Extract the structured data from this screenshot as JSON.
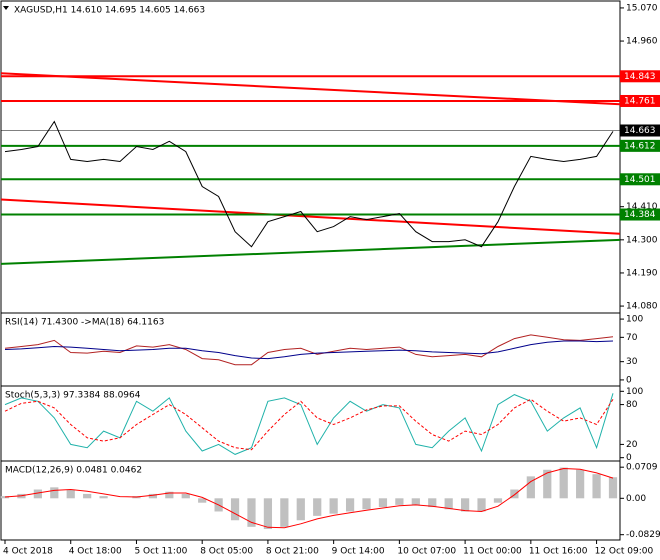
{
  "chart_data": [
    {
      "type": "line",
      "title": "XAGUSD,H1  14.610 14.695 14.605 14.663",
      "categories": [
        "4 Oct 2018",
        null,
        null,
        null,
        "4 Oct 18:00",
        null,
        null,
        null,
        "5 Oct 11:00",
        null,
        null,
        null,
        "8 Oct 05:00",
        null,
        null,
        null,
        "8 Oct 21:00",
        null,
        null,
        null,
        "9 Oct 14:00",
        null,
        null,
        null,
        "10 Oct 07:00",
        null,
        null,
        null,
        "11 Oct 00:00",
        null,
        null,
        null,
        "11 Oct 16:00",
        null,
        null,
        null,
        "12 Oct 09:00",
        null
      ],
      "series": [
        {
          "color": "#000000",
          "values": [
            14.593,
            14.6,
            14.61,
            14.693,
            14.567,
            14.56,
            14.567,
            14.56,
            14.61,
            14.6,
            14.627,
            14.593,
            14.477,
            14.444,
            14.327,
            14.277,
            14.36,
            14.377,
            14.394,
            14.327,
            14.344,
            14.377,
            14.367,
            14.377,
            14.387,
            14.327,
            14.294,
            14.294,
            14.3,
            14.277,
            14.36,
            14.477,
            14.577,
            14.567,
            14.56,
            14.567,
            14.577,
            14.66
          ]
        }
      ],
      "levels": [
        {
          "value": 14.843,
          "color": "#ff0000"
        },
        {
          "value": 14.761,
          "color": "#ff0000"
        },
        {
          "value": 14.663,
          "color": "#000000"
        },
        {
          "value": 14.612,
          "color": "#008000"
        },
        {
          "value": 14.501,
          "color": "#008000"
        },
        {
          "value": 14.384,
          "color": "#008000"
        }
      ],
      "trendlines": [
        {
          "color": "#ff0000",
          "values": [
            14.853,
            14.75
          ]
        },
        {
          "color": "#ff0000",
          "values": [
            14.434,
            14.32
          ]
        },
        {
          "color": "#008000",
          "values": [
            14.22,
            14.3
          ]
        }
      ],
      "ylim": [
        14.057,
        15.093
      ],
      "yticks": [
        {
          "value": 15.07,
          "label": "15.070"
        },
        {
          "value": 14.96,
          "label": "14.960"
        },
        {
          "value": 14.41,
          "label": "14.410"
        },
        {
          "value": 14.3,
          "label": "14.300"
        },
        {
          "value": 14.19,
          "label": "14.190"
        },
        {
          "value": 14.08,
          "label": "14.080"
        }
      ]
    },
    {
      "type": "indicator",
      "title": "RSI(14) 71.4300  ->MA(18) 64.1163",
      "series": [
        {
          "style": "line",
          "color": "#b22222",
          "values": [
            52,
            55,
            58,
            65,
            45,
            44,
            47,
            45,
            56,
            54,
            58,
            50,
            35,
            33,
            25,
            25,
            45,
            50,
            52,
            42,
            47,
            52,
            50,
            52,
            54,
            42,
            38,
            40,
            42,
            38,
            55,
            68,
            74,
            70,
            66,
            65,
            68,
            71
          ]
        },
        {
          "style": "line",
          "color": "#00008b",
          "values": [
            50,
            51,
            53,
            55,
            54,
            52,
            50,
            48,
            49,
            50,
            52,
            52,
            48,
            45,
            40,
            36,
            35,
            38,
            42,
            44,
            45,
            46,
            47,
            48,
            49,
            48,
            46,
            45,
            44,
            43,
            46,
            52,
            58,
            62,
            64,
            64,
            63,
            64
          ]
        }
      ],
      "ylim": [
        -10,
        110
      ],
      "yticks": [
        100,
        70,
        30,
        0
      ]
    },
    {
      "type": "indicator",
      "title": "Stoch(5,3,3) 97.3384 88.0964",
      "series": [
        {
          "style": "line",
          "color": "#20b2aa",
          "values": [
            80,
            90,
            85,
            60,
            20,
            15,
            40,
            30,
            85,
            70,
            90,
            40,
            10,
            20,
            5,
            15,
            85,
            90,
            80,
            20,
            60,
            85,
            70,
            80,
            75,
            20,
            15,
            40,
            60,
            10,
            80,
            95,
            85,
            40,
            60,
            75,
            15,
            97
          ]
        },
        {
          "style": "dash",
          "color": "#ff0000",
          "values": [
            70,
            82,
            85,
            75,
            50,
            30,
            25,
            30,
            50,
            65,
            80,
            65,
            45,
            25,
            15,
            12,
            40,
            65,
            85,
            60,
            50,
            60,
            72,
            78,
            78,
            55,
            35,
            25,
            40,
            35,
            50,
            75,
            88,
            70,
            55,
            60,
            50,
            88
          ]
        }
      ],
      "ylim": [
        -5,
        108
      ],
      "yticks": [
        100,
        80,
        20,
        0
      ]
    },
    {
      "type": "indicator",
      "title": "MACD(12,26,9) 0.0481 0.0462",
      "series": [
        {
          "style": "histogram",
          "color": "#c0c0c0",
          "values": [
            0.005,
            0.01,
            0.02,
            0.025,
            0.02,
            0.01,
            0.005,
            0,
            0.005,
            0.01,
            0.015,
            0.01,
            -0.01,
            -0.03,
            -0.05,
            -0.065,
            -0.07,
            -0.065,
            -0.05,
            -0.04,
            -0.035,
            -0.03,
            -0.025,
            -0.02,
            -0.015,
            -0.015,
            -0.02,
            -0.025,
            -0.03,
            -0.03,
            -0.01,
            0.02,
            0.05,
            0.065,
            0.07,
            0.065,
            0.055,
            0.048
          ]
        },
        {
          "style": "line",
          "color": "#ff0000",
          "values": [
            0.003,
            0.006,
            0.012,
            0.018,
            0.02,
            0.016,
            0.01,
            0.004,
            0.003,
            0.007,
            0.012,
            0.012,
            0.002,
            -0.015,
            -0.035,
            -0.055,
            -0.066,
            -0.067,
            -0.058,
            -0.047,
            -0.039,
            -0.033,
            -0.027,
            -0.022,
            -0.017,
            -0.015,
            -0.018,
            -0.023,
            -0.028,
            -0.03,
            -0.018,
            0.008,
            0.038,
            0.058,
            0.068,
            0.066,
            0.058,
            0.046
          ]
        }
      ],
      "ylim": [
        -0.095,
        0.085
      ],
      "yticks": [
        0.0709,
        {
          "value": 0,
          "label": "0.00"
        },
        -0.0829
      ]
    }
  ]
}
